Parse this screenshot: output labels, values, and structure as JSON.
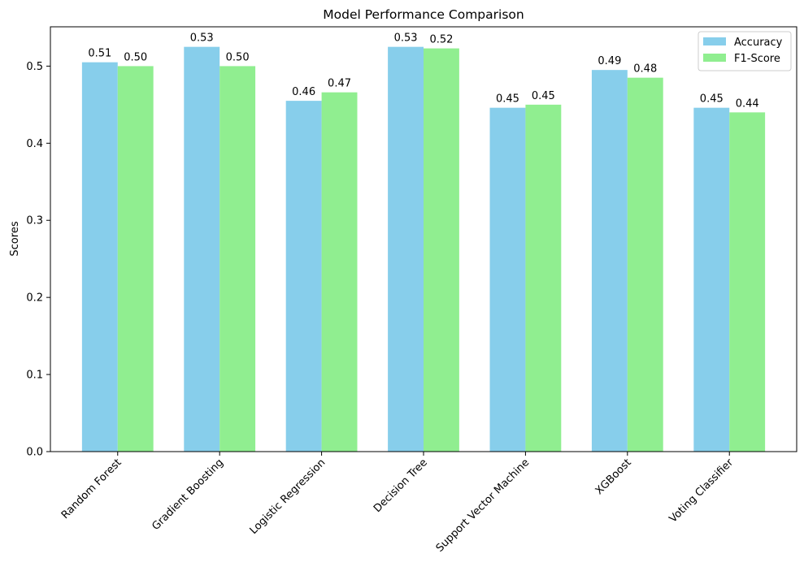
{
  "chart_data": {
    "type": "bar",
    "title": "Model Performance Comparison",
    "xlabel": "",
    "ylabel": "Scores",
    "ylim": [
      0,
      0.551
    ],
    "yticks": [
      0.0,
      0.1,
      0.2,
      0.3,
      0.4,
      0.5
    ],
    "ytick_labels": [
      "0.0",
      "0.1",
      "0.2",
      "0.3",
      "0.4",
      "0.5"
    ],
    "grid": false,
    "legend_position": "top-right",
    "categories": [
      "Random Forest",
      "Gradient Boosting",
      "Logistic Regression",
      "Decision Tree",
      "Support Vector Machine",
      "XGBoost",
      "Voting Classifier"
    ],
    "series": [
      {
        "name": "Accuracy",
        "color": "#87CEEB",
        "values": [
          0.505,
          0.525,
          0.455,
          0.525,
          0.446,
          0.495,
          0.446
        ],
        "labels": [
          "0.51",
          "0.53",
          "0.46",
          "0.53",
          "0.45",
          "0.49",
          "0.45"
        ]
      },
      {
        "name": "F1-Score",
        "color": "#90EE90",
        "values": [
          0.5,
          0.5,
          0.466,
          0.523,
          0.45,
          0.485,
          0.44
        ],
        "labels": [
          "0.50",
          "0.50",
          "0.47",
          "0.52",
          "0.45",
          "0.48",
          "0.44"
        ]
      }
    ]
  }
}
